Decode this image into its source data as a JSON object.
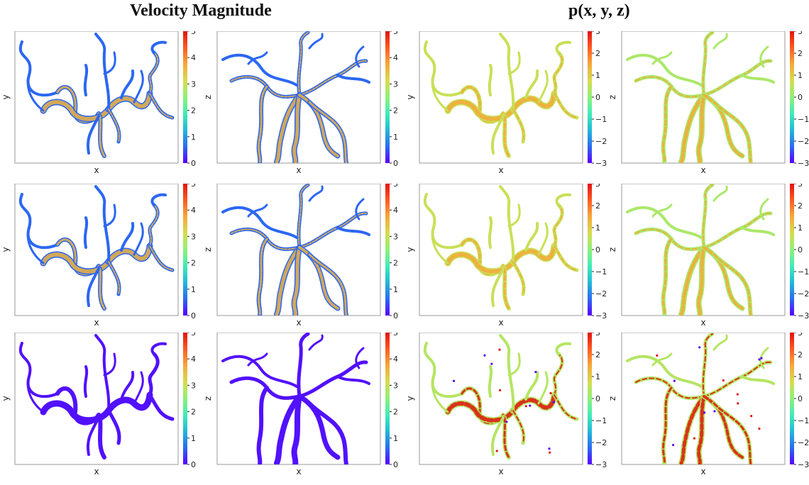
{
  "titles": {
    "left": "Velocity Magnitude",
    "right": "p(x, y, z)"
  },
  "colormap": [
    "#5a00ff",
    "#2a6bf2",
    "#22b8d8",
    "#40ecb8",
    "#8ff07a",
    "#d6dc4f",
    "#f5a83a",
    "#ff5a22",
    "#e0130e"
  ],
  "chart_data": [
    {
      "type": "heatmap",
      "quantity": "Velocity Magnitude",
      "row": 1,
      "col": 1,
      "xlabel": "x",
      "ylabel": "y",
      "view": "xy",
      "colorbar": {
        "min": 0,
        "max": 5,
        "ticks": [
          0,
          1,
          2,
          3,
          4,
          5
        ]
      },
      "field_range": [
        0,
        5
      ],
      "vessel_color_value": 0.6,
      "highlight_color_value": 3.6,
      "highlight_density": "high"
    },
    {
      "type": "heatmap",
      "quantity": "Velocity Magnitude",
      "row": 1,
      "col": 2,
      "xlabel": "x",
      "ylabel": "z",
      "view": "xz",
      "colorbar": {
        "min": 0,
        "max": 5,
        "ticks": [
          0,
          1,
          2,
          3,
          4,
          5
        ]
      },
      "field_range": [
        0,
        5
      ],
      "vessel_color_value": 0.6,
      "highlight_color_value": 3.6,
      "highlight_density": "high"
    },
    {
      "type": "heatmap",
      "quantity": "p(x, y, z)",
      "row": 1,
      "col": 3,
      "xlabel": "x",
      "ylabel": "y",
      "view": "xy",
      "colorbar": {
        "min": -3,
        "max": 3,
        "ticks": [
          -3,
          -2,
          -1,
          0,
          1,
          2,
          3
        ]
      },
      "field_range": [
        -3,
        3
      ],
      "vessel_color_value": 0.6,
      "highlight_color_value": 1.5,
      "highlight_density": "medium"
    },
    {
      "type": "heatmap",
      "quantity": "p(x, y, z)",
      "row": 1,
      "col": 4,
      "xlabel": "x",
      "ylabel": "z",
      "view": "xz",
      "colorbar": {
        "min": -3,
        "max": 3,
        "ticks": [
          -3,
          -2,
          -1,
          0,
          1,
          2,
          3
        ]
      },
      "field_range": [
        -3,
        3
      ],
      "vessel_color_value": 0.3,
      "highlight_color_value": 1.5,
      "highlight_density": "medium"
    },
    {
      "type": "heatmap",
      "quantity": "Velocity Magnitude",
      "row": 2,
      "col": 1,
      "xlabel": "x",
      "ylabel": "y",
      "view": "xy",
      "colorbar": {
        "min": 0,
        "max": 5,
        "ticks": [
          0,
          1,
          2,
          3,
          4,
          5
        ]
      },
      "field_range": [
        0,
        5
      ],
      "vessel_color_value": 0.6,
      "highlight_color_value": 3.6,
      "highlight_density": "high"
    },
    {
      "type": "heatmap",
      "quantity": "Velocity Magnitude",
      "row": 2,
      "col": 2,
      "xlabel": "x",
      "ylabel": "z",
      "view": "xz",
      "colorbar": {
        "min": 0,
        "max": 5,
        "ticks": [
          0,
          1,
          2,
          3,
          4,
          5
        ]
      },
      "field_range": [
        0,
        5
      ],
      "vessel_color_value": 0.6,
      "highlight_color_value": 3.6,
      "highlight_density": "high"
    },
    {
      "type": "heatmap",
      "quantity": "p(x, y, z)",
      "row": 2,
      "col": 3,
      "xlabel": "x",
      "ylabel": "y",
      "view": "xy",
      "colorbar": {
        "min": -3,
        "max": 3,
        "ticks": [
          -3,
          -2,
          -1,
          0,
          1,
          2,
          3
        ]
      },
      "field_range": [
        -3,
        3
      ],
      "vessel_color_value": 0.6,
      "highlight_color_value": 1.5,
      "highlight_density": "medium"
    },
    {
      "type": "heatmap",
      "quantity": "p(x, y, z)",
      "row": 2,
      "col": 4,
      "xlabel": "x",
      "ylabel": "z",
      "view": "xz",
      "colorbar": {
        "min": -3,
        "max": 3,
        "ticks": [
          -3,
          -2,
          -1,
          0,
          1,
          2,
          3
        ]
      },
      "field_range": [
        -3,
        3
      ],
      "vessel_color_value": 0.3,
      "highlight_color_value": 1.5,
      "highlight_density": "medium"
    },
    {
      "type": "heatmap",
      "quantity": "Velocity Magnitude",
      "row": 3,
      "col": 1,
      "xlabel": "x",
      "ylabel": "y",
      "view": "xy",
      "colorbar": {
        "min": 0,
        "max": 5,
        "ticks": [
          0,
          1,
          2,
          3,
          4,
          5
        ]
      },
      "field_range": [
        0,
        5
      ],
      "vessel_color_value": 0.1,
      "highlight_color_value": 0.1,
      "highlight_density": "none"
    },
    {
      "type": "heatmap",
      "quantity": "Velocity Magnitude",
      "row": 3,
      "col": 2,
      "xlabel": "x",
      "ylabel": "z",
      "view": "xz",
      "colorbar": {
        "min": 0,
        "max": 5,
        "ticks": [
          0,
          1,
          2,
          3,
          4,
          5
        ]
      },
      "field_range": [
        0,
        5
      ],
      "vessel_color_value": 0.1,
      "highlight_color_value": 0.1,
      "highlight_density": "none"
    },
    {
      "type": "heatmap",
      "quantity": "p(x, y, z)",
      "row": 3,
      "col": 3,
      "xlabel": "x",
      "ylabel": "y",
      "view": "xy",
      "colorbar": {
        "min": -3,
        "max": 3,
        "ticks": [
          -3,
          -2,
          -1,
          0,
          1,
          2,
          3
        ]
      },
      "field_range": [
        -3,
        3
      ],
      "vessel_color_value": 0.4,
      "highlight_color_value": 3.0,
      "highlight_density": "sparse"
    },
    {
      "type": "heatmap",
      "quantity": "p(x, y, z)",
      "row": 3,
      "col": 4,
      "xlabel": "x",
      "ylabel": "z",
      "view": "xz",
      "colorbar": {
        "min": -3,
        "max": 3,
        "ticks": [
          -3,
          -2,
          -1,
          0,
          1,
          2,
          3
        ]
      },
      "field_range": [
        -3,
        3
      ],
      "vessel_color_value": 0.4,
      "highlight_color_value": 3.0,
      "highlight_density": "sparse"
    }
  ]
}
